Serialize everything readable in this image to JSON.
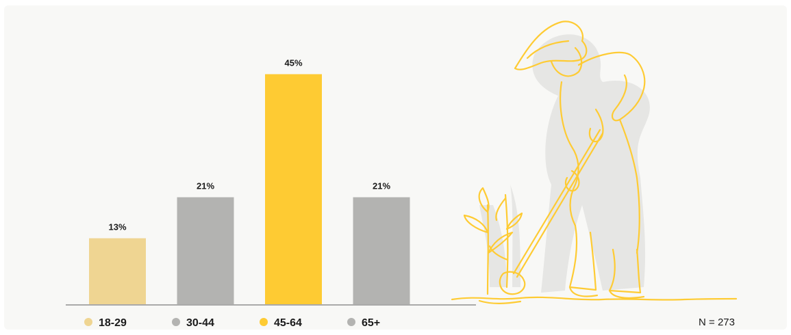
{
  "chart_data": {
    "type": "bar",
    "categories": [
      "18-29",
      "30-44",
      "45-64",
      "65+"
    ],
    "values": [
      13,
      21,
      45,
      21
    ],
    "value_labels": [
      "13%",
      "21%",
      "45%",
      "21%"
    ],
    "colors": [
      "#efd592",
      "#b3b3b1",
      "#fecb33",
      "#b3b3b1"
    ],
    "ylim": [
      0,
      50
    ],
    "grid": false,
    "legend_position": "bottom"
  },
  "sample_size": "N = 273",
  "illustration": {
    "icon": "farmer-with-hoe-line-art-icon",
    "line_color": "#fecb33",
    "shadow_color": "#e6e6e4"
  }
}
